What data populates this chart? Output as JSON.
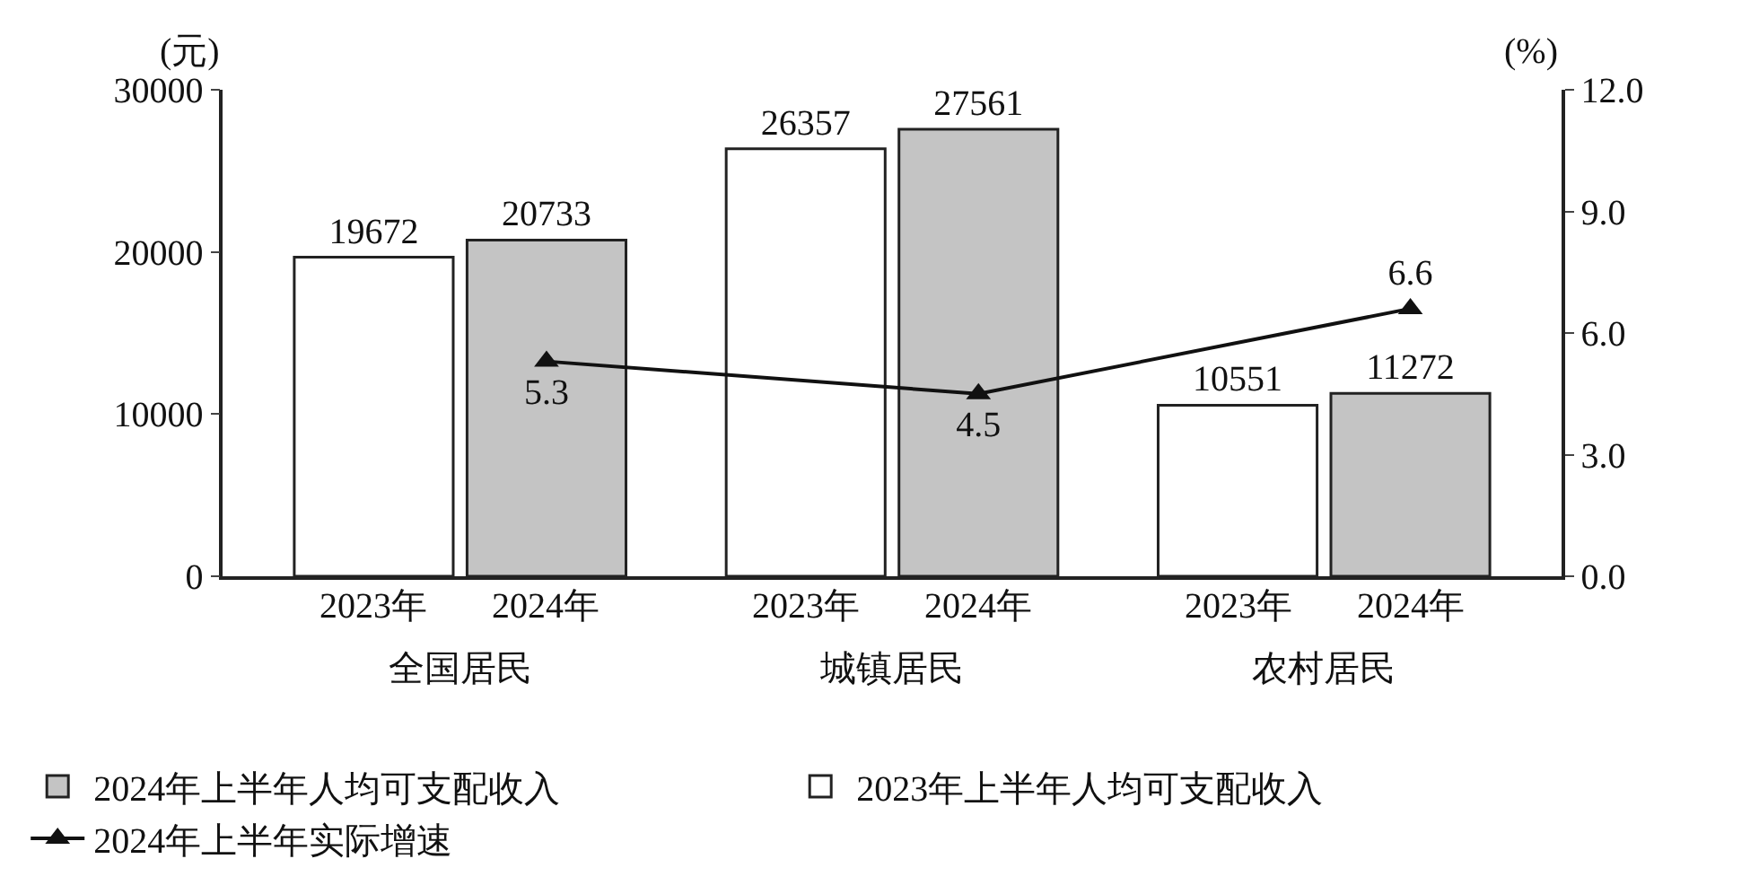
{
  "chart_data": {
    "type": "bar",
    "categories": [
      "全国居民",
      "城镇居民",
      "农村居民"
    ],
    "ylabel": "(元)",
    "y2label": "(%)",
    "series": [
      {
        "name": "2023年上半年人均可支配收入",
        "color": "#ffffff",
        "values": [
          19672,
          26357,
          10551
        ]
      },
      {
        "name": "2024年上半年人均可支配收入",
        "color": "#c4c4c4",
        "values": [
          20733,
          27561,
          11272
        ]
      },
      {
        "name": "2024年上半年实际增速",
        "type": "line",
        "axis": "y2",
        "color": "#111111",
        "values": [
          5.3,
          4.5,
          6.6
        ]
      }
    ],
    "annotations": [
      "2023年",
      "2024年",
      "2023年",
      "2024年",
      "2023年",
      "2024年"
    ],
    "ylim": [
      0,
      30000
    ],
    "yticks": [
      0,
      10000,
      20000,
      30000
    ],
    "y2lim": [
      0,
      12
    ],
    "y2ticks": [
      {
        "value": 0,
        "label": "0.0"
      },
      {
        "value": 3,
        "label": "3.0"
      },
      {
        "value": 6,
        "label": "6.0"
      },
      {
        "value": 9,
        "label": "9.0"
      },
      {
        "value": 12,
        "label": "12.0"
      }
    ],
    "data_labels": true,
    "legend": "bottom",
    "marker": "triangle",
    "line_style": "solid"
  }
}
